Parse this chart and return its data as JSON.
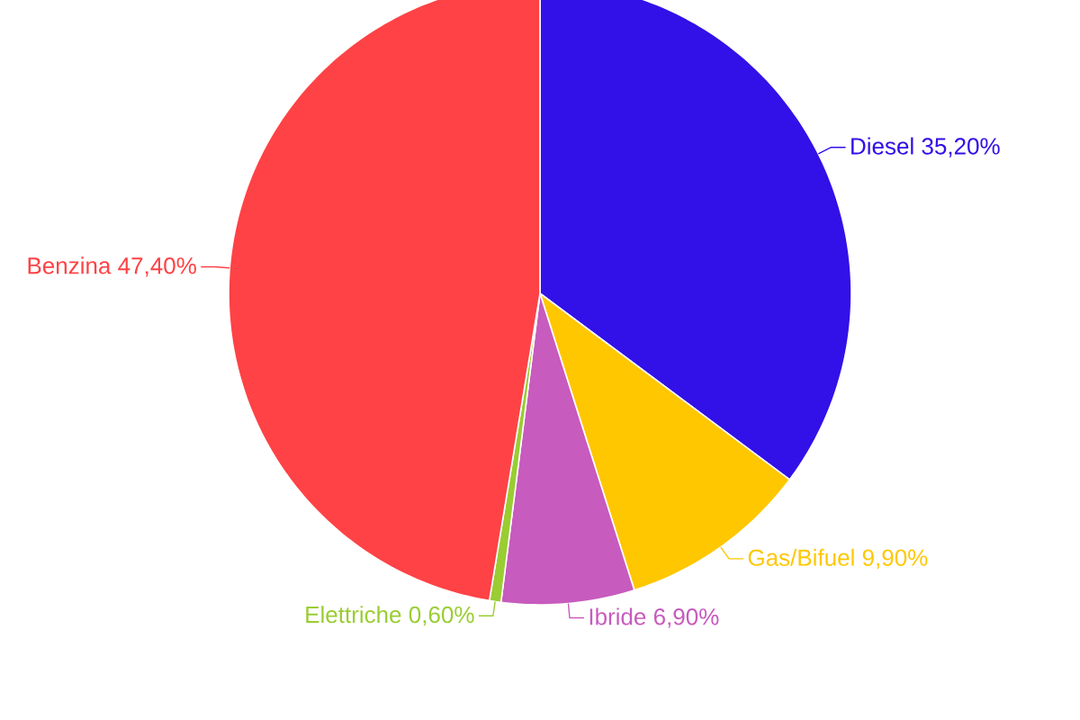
{
  "chart_data": {
    "type": "pie",
    "categories": [
      "Diesel",
      "Gas/Bifuel",
      "Ibride",
      "Elettriche",
      "Benzina"
    ],
    "values": [
      35.2,
      9.9,
      6.9,
      0.6,
      47.4
    ],
    "colors": [
      "#3210e8",
      "#ffc700",
      "#c75bbe",
      "#9acd32",
      "#ff4245"
    ],
    "value_labels": [
      "35,20%",
      "9,90%",
      "6,90%",
      "0,60%",
      "47,40%"
    ]
  }
}
